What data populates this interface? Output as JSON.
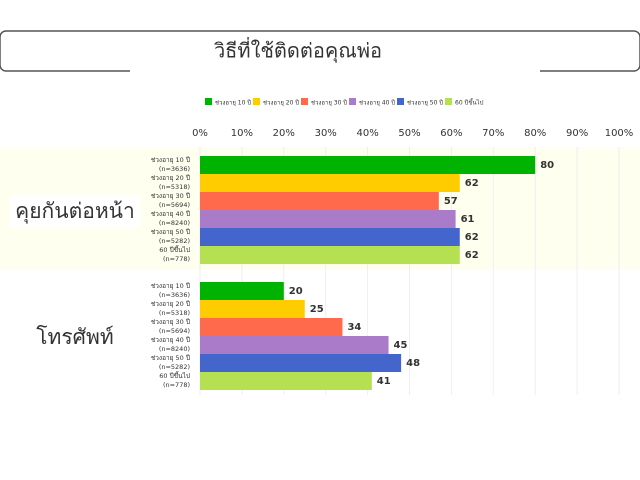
{
  "chart_data": {
    "type": "bar",
    "orientation": "horizontal",
    "title": "วิธีที่ใช้ติดต่อคุณพ่อ",
    "categories": [
      "คุยกันต่อหน้า",
      "โทรศัพท์"
    ],
    "series": [
      {
        "name": "ช่วงอายุ 10 ปี",
        "sample": "(n=3636)",
        "color": "#00b300",
        "values": [
          80,
          20
        ]
      },
      {
        "name": "ช่วงอายุ 20 ปี",
        "sample": "(n=5318)",
        "color": "#ffcc00",
        "values": [
          62,
          25
        ]
      },
      {
        "name": "ช่วงอายุ 30 ปี",
        "sample": "(n=5694)",
        "color": "#ff6a4d",
        "values": [
          57,
          34
        ]
      },
      {
        "name": "ช่วงอายุ 40 ปี",
        "sample": "(n=8240)",
        "color": "#a97bc8",
        "values": [
          61,
          45
        ]
      },
      {
        "name": "ช่วงอายุ 50 ปี",
        "sample": "(n=5282)",
        "color": "#4466cc",
        "values": [
          62,
          48
        ]
      },
      {
        "name": "60 ปีขึ้นไป",
        "sample": "(n=778)",
        "color": "#b5e051",
        "values": [
          62,
          41
        ]
      }
    ],
    "xlim": [
      0,
      100
    ],
    "xticks": [
      {
        "value": 0,
        "label": "0%"
      },
      {
        "value": 10,
        "label": "10%"
      },
      {
        "value": 20,
        "label": "20%"
      },
      {
        "value": 30,
        "label": "30%"
      },
      {
        "value": 40,
        "label": "40%"
      },
      {
        "value": 50,
        "label": "50%"
      },
      {
        "value": 60,
        "label": "60%"
      },
      {
        "value": 70,
        "label": "70%"
      },
      {
        "value": 80,
        "label": "80%"
      },
      {
        "value": 90,
        "label": "90%"
      },
      {
        "value": 100,
        "label": "100%"
      }
    ],
    "grid": true
  }
}
